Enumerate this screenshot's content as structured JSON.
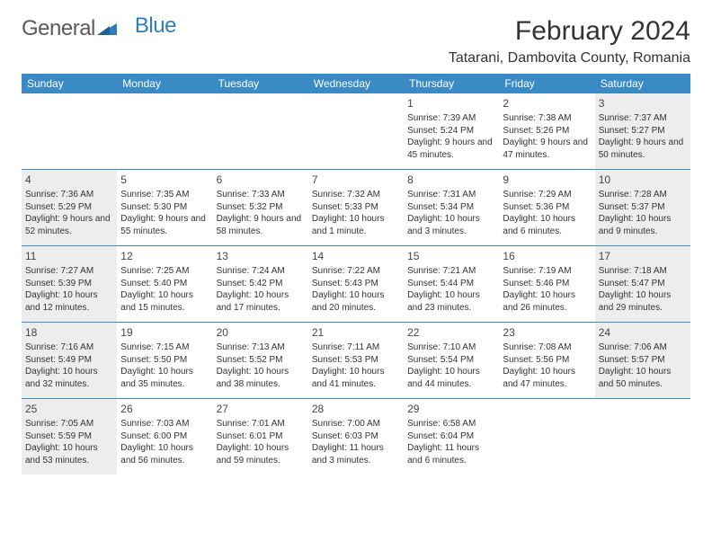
{
  "logo": {
    "general": "General",
    "blue": "Blue"
  },
  "title": "February 2024",
  "location": "Tatarani, Dambovita County, Romania",
  "colors": {
    "header_bg": "#3a8ac6",
    "shaded": "#ededed",
    "text": "#333333"
  },
  "dow": [
    "Sunday",
    "Monday",
    "Tuesday",
    "Wednesday",
    "Thursday",
    "Friday",
    "Saturday"
  ],
  "weeks": [
    [
      {
        "day": "",
        "sunrise": "",
        "sunset": "",
        "daylight": "",
        "shaded": false
      },
      {
        "day": "",
        "sunrise": "",
        "sunset": "",
        "daylight": "",
        "shaded": false
      },
      {
        "day": "",
        "sunrise": "",
        "sunset": "",
        "daylight": "",
        "shaded": false
      },
      {
        "day": "",
        "sunrise": "",
        "sunset": "",
        "daylight": "",
        "shaded": false
      },
      {
        "day": "1",
        "sunrise": "Sunrise: 7:39 AM",
        "sunset": "Sunset: 5:24 PM",
        "daylight": "Daylight: 9 hours and 45 minutes.",
        "shaded": false
      },
      {
        "day": "2",
        "sunrise": "Sunrise: 7:38 AM",
        "sunset": "Sunset: 5:26 PM",
        "daylight": "Daylight: 9 hours and 47 minutes.",
        "shaded": false
      },
      {
        "day": "3",
        "sunrise": "Sunrise: 7:37 AM",
        "sunset": "Sunset: 5:27 PM",
        "daylight": "Daylight: 9 hours and 50 minutes.",
        "shaded": true
      }
    ],
    [
      {
        "day": "4",
        "sunrise": "Sunrise: 7:36 AM",
        "sunset": "Sunset: 5:29 PM",
        "daylight": "Daylight: 9 hours and 52 minutes.",
        "shaded": true
      },
      {
        "day": "5",
        "sunrise": "Sunrise: 7:35 AM",
        "sunset": "Sunset: 5:30 PM",
        "daylight": "Daylight: 9 hours and 55 minutes.",
        "shaded": false
      },
      {
        "day": "6",
        "sunrise": "Sunrise: 7:33 AM",
        "sunset": "Sunset: 5:32 PM",
        "daylight": "Daylight: 9 hours and 58 minutes.",
        "shaded": false
      },
      {
        "day": "7",
        "sunrise": "Sunrise: 7:32 AM",
        "sunset": "Sunset: 5:33 PM",
        "daylight": "Daylight: 10 hours and 1 minute.",
        "shaded": false
      },
      {
        "day": "8",
        "sunrise": "Sunrise: 7:31 AM",
        "sunset": "Sunset: 5:34 PM",
        "daylight": "Daylight: 10 hours and 3 minutes.",
        "shaded": false
      },
      {
        "day": "9",
        "sunrise": "Sunrise: 7:29 AM",
        "sunset": "Sunset: 5:36 PM",
        "daylight": "Daylight: 10 hours and 6 minutes.",
        "shaded": false
      },
      {
        "day": "10",
        "sunrise": "Sunrise: 7:28 AM",
        "sunset": "Sunset: 5:37 PM",
        "daylight": "Daylight: 10 hours and 9 minutes.",
        "shaded": true
      }
    ],
    [
      {
        "day": "11",
        "sunrise": "Sunrise: 7:27 AM",
        "sunset": "Sunset: 5:39 PM",
        "daylight": "Daylight: 10 hours and 12 minutes.",
        "shaded": true
      },
      {
        "day": "12",
        "sunrise": "Sunrise: 7:25 AM",
        "sunset": "Sunset: 5:40 PM",
        "daylight": "Daylight: 10 hours and 15 minutes.",
        "shaded": false
      },
      {
        "day": "13",
        "sunrise": "Sunrise: 7:24 AM",
        "sunset": "Sunset: 5:42 PM",
        "daylight": "Daylight: 10 hours and 17 minutes.",
        "shaded": false
      },
      {
        "day": "14",
        "sunrise": "Sunrise: 7:22 AM",
        "sunset": "Sunset: 5:43 PM",
        "daylight": "Daylight: 10 hours and 20 minutes.",
        "shaded": false
      },
      {
        "day": "15",
        "sunrise": "Sunrise: 7:21 AM",
        "sunset": "Sunset: 5:44 PM",
        "daylight": "Daylight: 10 hours and 23 minutes.",
        "shaded": false
      },
      {
        "day": "16",
        "sunrise": "Sunrise: 7:19 AM",
        "sunset": "Sunset: 5:46 PM",
        "daylight": "Daylight: 10 hours and 26 minutes.",
        "shaded": false
      },
      {
        "day": "17",
        "sunrise": "Sunrise: 7:18 AM",
        "sunset": "Sunset: 5:47 PM",
        "daylight": "Daylight: 10 hours and 29 minutes.",
        "shaded": true
      }
    ],
    [
      {
        "day": "18",
        "sunrise": "Sunrise: 7:16 AM",
        "sunset": "Sunset: 5:49 PM",
        "daylight": "Daylight: 10 hours and 32 minutes.",
        "shaded": true
      },
      {
        "day": "19",
        "sunrise": "Sunrise: 7:15 AM",
        "sunset": "Sunset: 5:50 PM",
        "daylight": "Daylight: 10 hours and 35 minutes.",
        "shaded": false
      },
      {
        "day": "20",
        "sunrise": "Sunrise: 7:13 AM",
        "sunset": "Sunset: 5:52 PM",
        "daylight": "Daylight: 10 hours and 38 minutes.",
        "shaded": false
      },
      {
        "day": "21",
        "sunrise": "Sunrise: 7:11 AM",
        "sunset": "Sunset: 5:53 PM",
        "daylight": "Daylight: 10 hours and 41 minutes.",
        "shaded": false
      },
      {
        "day": "22",
        "sunrise": "Sunrise: 7:10 AM",
        "sunset": "Sunset: 5:54 PM",
        "daylight": "Daylight: 10 hours and 44 minutes.",
        "shaded": false
      },
      {
        "day": "23",
        "sunrise": "Sunrise: 7:08 AM",
        "sunset": "Sunset: 5:56 PM",
        "daylight": "Daylight: 10 hours and 47 minutes.",
        "shaded": false
      },
      {
        "day": "24",
        "sunrise": "Sunrise: 7:06 AM",
        "sunset": "Sunset: 5:57 PM",
        "daylight": "Daylight: 10 hours and 50 minutes.",
        "shaded": true
      }
    ],
    [
      {
        "day": "25",
        "sunrise": "Sunrise: 7:05 AM",
        "sunset": "Sunset: 5:59 PM",
        "daylight": "Daylight: 10 hours and 53 minutes.",
        "shaded": true
      },
      {
        "day": "26",
        "sunrise": "Sunrise: 7:03 AM",
        "sunset": "Sunset: 6:00 PM",
        "daylight": "Daylight: 10 hours and 56 minutes.",
        "shaded": false
      },
      {
        "day": "27",
        "sunrise": "Sunrise: 7:01 AM",
        "sunset": "Sunset: 6:01 PM",
        "daylight": "Daylight: 10 hours and 59 minutes.",
        "shaded": false
      },
      {
        "day": "28",
        "sunrise": "Sunrise: 7:00 AM",
        "sunset": "Sunset: 6:03 PM",
        "daylight": "Daylight: 11 hours and 3 minutes.",
        "shaded": false
      },
      {
        "day": "29",
        "sunrise": "Sunrise: 6:58 AM",
        "sunset": "Sunset: 6:04 PM",
        "daylight": "Daylight: 11 hours and 6 minutes.",
        "shaded": false
      },
      {
        "day": "",
        "sunrise": "",
        "sunset": "",
        "daylight": "",
        "shaded": false
      },
      {
        "day": "",
        "sunrise": "",
        "sunset": "",
        "daylight": "",
        "shaded": false
      }
    ]
  ]
}
